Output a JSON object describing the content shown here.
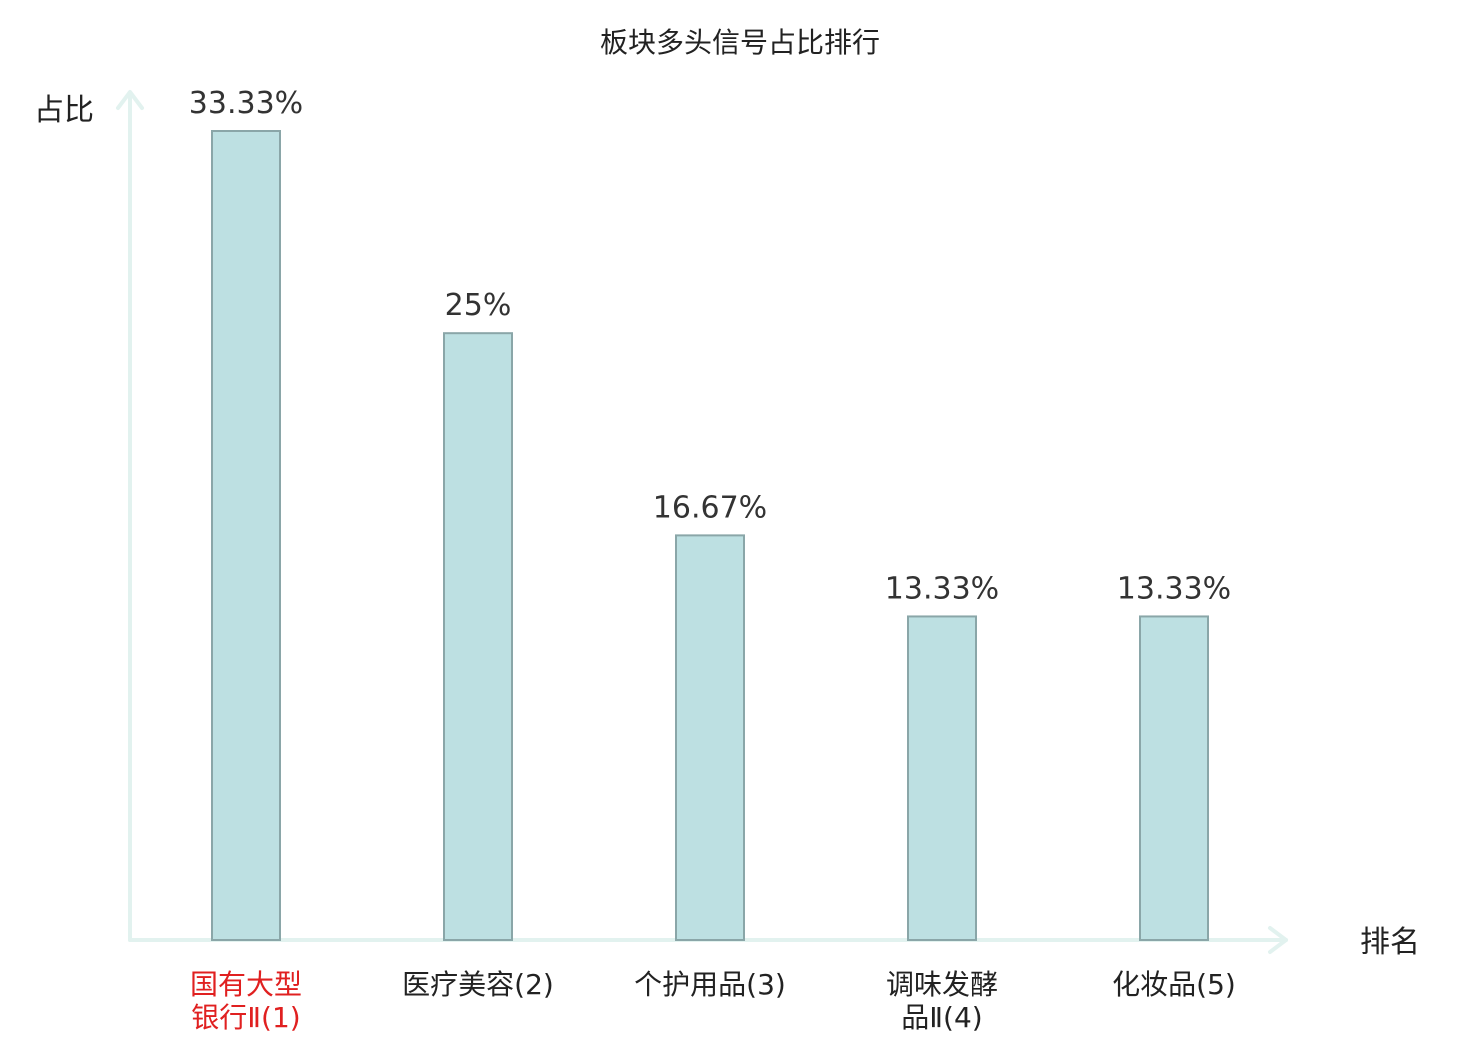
{
  "chart_data": {
    "type": "bar",
    "title": "板块多头信号占比排行",
    "ylabel": "占比",
    "xlabel": "排名",
    "categories": [
      [
        "国有大型",
        "银行Ⅱ(1)"
      ],
      [
        "医疗美容(2)"
      ],
      [
        "个护用品(3)"
      ],
      [
        "调味发酵",
        "品Ⅱ(4)"
      ],
      [
        "化妆品(5)"
      ]
    ],
    "values": [
      33.33,
      25,
      16.67,
      13.33,
      13.33
    ],
    "value_labels": [
      "33.33%",
      "25%",
      "16.67%",
      "13.33%",
      "13.33%"
    ],
    "highlight_index": 0,
    "ylim": [
      0,
      33.33
    ],
    "grid": false,
    "colors": {
      "bar_fill": "#bde0e2",
      "bar_stroke": "#8aa6a8",
      "axis": "#e2f2ef",
      "highlight_text": "#e02020"
    }
  }
}
